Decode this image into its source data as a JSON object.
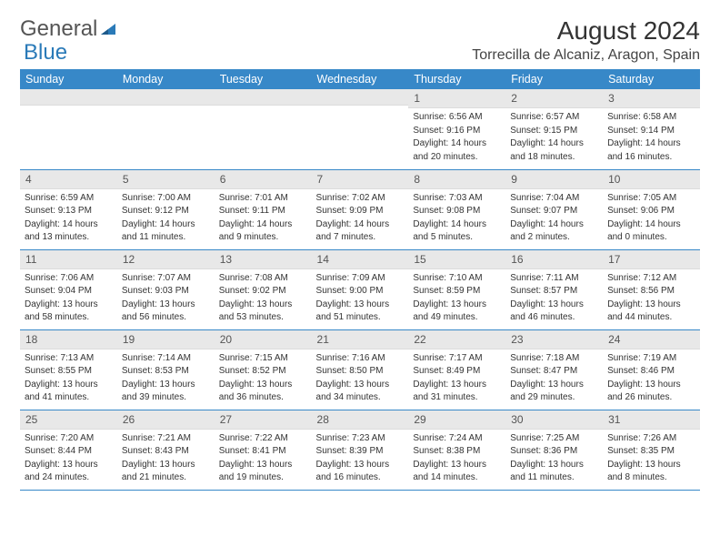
{
  "logo": {
    "general": "General",
    "blue": "Blue"
  },
  "header": {
    "title": "August 2024",
    "location": "Torrecilla de Alcaniz, Aragon, Spain"
  },
  "colors": {
    "header_bg": "#3788c8",
    "header_text": "#ffffff",
    "date_bg": "#e8e8e8",
    "border": "#3788c8",
    "logo_gray": "#555555",
    "logo_blue": "#2a7ab8"
  },
  "days": [
    "Sunday",
    "Monday",
    "Tuesday",
    "Wednesday",
    "Thursday",
    "Friday",
    "Saturday"
  ],
  "weeks": [
    [
      {
        "date": "",
        "sunrise": "",
        "sunset": "",
        "daylight1": "",
        "daylight2": ""
      },
      {
        "date": "",
        "sunrise": "",
        "sunset": "",
        "daylight1": "",
        "daylight2": ""
      },
      {
        "date": "",
        "sunrise": "",
        "sunset": "",
        "daylight1": "",
        "daylight2": ""
      },
      {
        "date": "",
        "sunrise": "",
        "sunset": "",
        "daylight1": "",
        "daylight2": ""
      },
      {
        "date": "1",
        "sunrise": "Sunrise: 6:56 AM",
        "sunset": "Sunset: 9:16 PM",
        "daylight1": "Daylight: 14 hours",
        "daylight2": "and 20 minutes."
      },
      {
        "date": "2",
        "sunrise": "Sunrise: 6:57 AM",
        "sunset": "Sunset: 9:15 PM",
        "daylight1": "Daylight: 14 hours",
        "daylight2": "and 18 minutes."
      },
      {
        "date": "3",
        "sunrise": "Sunrise: 6:58 AM",
        "sunset": "Sunset: 9:14 PM",
        "daylight1": "Daylight: 14 hours",
        "daylight2": "and 16 minutes."
      }
    ],
    [
      {
        "date": "4",
        "sunrise": "Sunrise: 6:59 AM",
        "sunset": "Sunset: 9:13 PM",
        "daylight1": "Daylight: 14 hours",
        "daylight2": "and 13 minutes."
      },
      {
        "date": "5",
        "sunrise": "Sunrise: 7:00 AM",
        "sunset": "Sunset: 9:12 PM",
        "daylight1": "Daylight: 14 hours",
        "daylight2": "and 11 minutes."
      },
      {
        "date": "6",
        "sunrise": "Sunrise: 7:01 AM",
        "sunset": "Sunset: 9:11 PM",
        "daylight1": "Daylight: 14 hours",
        "daylight2": "and 9 minutes."
      },
      {
        "date": "7",
        "sunrise": "Sunrise: 7:02 AM",
        "sunset": "Sunset: 9:09 PM",
        "daylight1": "Daylight: 14 hours",
        "daylight2": "and 7 minutes."
      },
      {
        "date": "8",
        "sunrise": "Sunrise: 7:03 AM",
        "sunset": "Sunset: 9:08 PM",
        "daylight1": "Daylight: 14 hours",
        "daylight2": "and 5 minutes."
      },
      {
        "date": "9",
        "sunrise": "Sunrise: 7:04 AM",
        "sunset": "Sunset: 9:07 PM",
        "daylight1": "Daylight: 14 hours",
        "daylight2": "and 2 minutes."
      },
      {
        "date": "10",
        "sunrise": "Sunrise: 7:05 AM",
        "sunset": "Sunset: 9:06 PM",
        "daylight1": "Daylight: 14 hours",
        "daylight2": "and 0 minutes."
      }
    ],
    [
      {
        "date": "11",
        "sunrise": "Sunrise: 7:06 AM",
        "sunset": "Sunset: 9:04 PM",
        "daylight1": "Daylight: 13 hours",
        "daylight2": "and 58 minutes."
      },
      {
        "date": "12",
        "sunrise": "Sunrise: 7:07 AM",
        "sunset": "Sunset: 9:03 PM",
        "daylight1": "Daylight: 13 hours",
        "daylight2": "and 56 minutes."
      },
      {
        "date": "13",
        "sunrise": "Sunrise: 7:08 AM",
        "sunset": "Sunset: 9:02 PM",
        "daylight1": "Daylight: 13 hours",
        "daylight2": "and 53 minutes."
      },
      {
        "date": "14",
        "sunrise": "Sunrise: 7:09 AM",
        "sunset": "Sunset: 9:00 PM",
        "daylight1": "Daylight: 13 hours",
        "daylight2": "and 51 minutes."
      },
      {
        "date": "15",
        "sunrise": "Sunrise: 7:10 AM",
        "sunset": "Sunset: 8:59 PM",
        "daylight1": "Daylight: 13 hours",
        "daylight2": "and 49 minutes."
      },
      {
        "date": "16",
        "sunrise": "Sunrise: 7:11 AM",
        "sunset": "Sunset: 8:57 PM",
        "daylight1": "Daylight: 13 hours",
        "daylight2": "and 46 minutes."
      },
      {
        "date": "17",
        "sunrise": "Sunrise: 7:12 AM",
        "sunset": "Sunset: 8:56 PM",
        "daylight1": "Daylight: 13 hours",
        "daylight2": "and 44 minutes."
      }
    ],
    [
      {
        "date": "18",
        "sunrise": "Sunrise: 7:13 AM",
        "sunset": "Sunset: 8:55 PM",
        "daylight1": "Daylight: 13 hours",
        "daylight2": "and 41 minutes."
      },
      {
        "date": "19",
        "sunrise": "Sunrise: 7:14 AM",
        "sunset": "Sunset: 8:53 PM",
        "daylight1": "Daylight: 13 hours",
        "daylight2": "and 39 minutes."
      },
      {
        "date": "20",
        "sunrise": "Sunrise: 7:15 AM",
        "sunset": "Sunset: 8:52 PM",
        "daylight1": "Daylight: 13 hours",
        "daylight2": "and 36 minutes."
      },
      {
        "date": "21",
        "sunrise": "Sunrise: 7:16 AM",
        "sunset": "Sunset: 8:50 PM",
        "daylight1": "Daylight: 13 hours",
        "daylight2": "and 34 minutes."
      },
      {
        "date": "22",
        "sunrise": "Sunrise: 7:17 AM",
        "sunset": "Sunset: 8:49 PM",
        "daylight1": "Daylight: 13 hours",
        "daylight2": "and 31 minutes."
      },
      {
        "date": "23",
        "sunrise": "Sunrise: 7:18 AM",
        "sunset": "Sunset: 8:47 PM",
        "daylight1": "Daylight: 13 hours",
        "daylight2": "and 29 minutes."
      },
      {
        "date": "24",
        "sunrise": "Sunrise: 7:19 AM",
        "sunset": "Sunset: 8:46 PM",
        "daylight1": "Daylight: 13 hours",
        "daylight2": "and 26 minutes."
      }
    ],
    [
      {
        "date": "25",
        "sunrise": "Sunrise: 7:20 AM",
        "sunset": "Sunset: 8:44 PM",
        "daylight1": "Daylight: 13 hours",
        "daylight2": "and 24 minutes."
      },
      {
        "date": "26",
        "sunrise": "Sunrise: 7:21 AM",
        "sunset": "Sunset: 8:43 PM",
        "daylight1": "Daylight: 13 hours",
        "daylight2": "and 21 minutes."
      },
      {
        "date": "27",
        "sunrise": "Sunrise: 7:22 AM",
        "sunset": "Sunset: 8:41 PM",
        "daylight1": "Daylight: 13 hours",
        "daylight2": "and 19 minutes."
      },
      {
        "date": "28",
        "sunrise": "Sunrise: 7:23 AM",
        "sunset": "Sunset: 8:39 PM",
        "daylight1": "Daylight: 13 hours",
        "daylight2": "and 16 minutes."
      },
      {
        "date": "29",
        "sunrise": "Sunrise: 7:24 AM",
        "sunset": "Sunset: 8:38 PM",
        "daylight1": "Daylight: 13 hours",
        "daylight2": "and 14 minutes."
      },
      {
        "date": "30",
        "sunrise": "Sunrise: 7:25 AM",
        "sunset": "Sunset: 8:36 PM",
        "daylight1": "Daylight: 13 hours",
        "daylight2": "and 11 minutes."
      },
      {
        "date": "31",
        "sunrise": "Sunrise: 7:26 AM",
        "sunset": "Sunset: 8:35 PM",
        "daylight1": "Daylight: 13 hours",
        "daylight2": "and 8 minutes."
      }
    ]
  ]
}
